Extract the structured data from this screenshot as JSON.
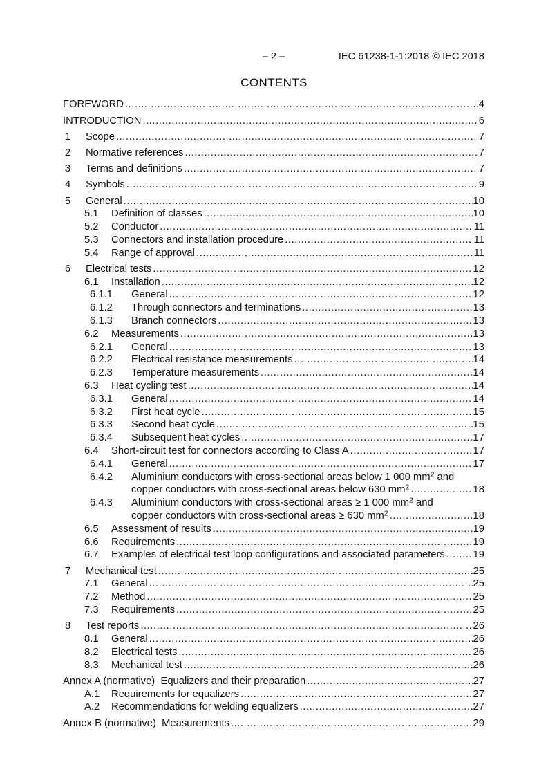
{
  "colors": {
    "background": "#ffffff",
    "text": "#111111"
  },
  "header": {
    "page_marker": "– 2 –",
    "doc_ref": "IEC 61238-1-1:2018 © IEC 2018"
  },
  "title": "CONTENTS",
  "toc": [
    {
      "level": 0,
      "num": "",
      "title": "FOREWORD",
      "page": "4"
    },
    {
      "level": 0,
      "num": "",
      "title": "INTRODUCTION",
      "page": "6"
    },
    {
      "level": 1,
      "num": "1",
      "title": "Scope",
      "page": "7"
    },
    {
      "level": 1,
      "num": "2",
      "title": "Normative references",
      "page": "7"
    },
    {
      "level": 1,
      "num": "3",
      "title": "Terms and definitions",
      "page": "7"
    },
    {
      "level": 1,
      "num": "4",
      "title": "Symbols",
      "page": "9"
    },
    {
      "level": 1,
      "num": "5",
      "title": "General",
      "page": "10"
    },
    {
      "level": 2,
      "num": "5.1",
      "title": "Definition of classes",
      "page": "10"
    },
    {
      "level": 2,
      "num": "5.2",
      "title": "Conductor",
      "page": "11"
    },
    {
      "level": 2,
      "num": "5.3",
      "title": "Connectors and installation procedure",
      "page": "11"
    },
    {
      "level": 2,
      "num": "5.4",
      "title": "Range of approval",
      "page": "11"
    },
    {
      "level": 1,
      "num": "6",
      "title": "Electrical tests",
      "page": "12"
    },
    {
      "level": 2,
      "num": "6.1",
      "title": "Installation",
      "page": "12"
    },
    {
      "level": 3,
      "num": "6.1.1",
      "title": "General",
      "page": "12"
    },
    {
      "level": 3,
      "num": "6.1.2",
      "title": "Through connectors and terminations",
      "page": "13"
    },
    {
      "level": 3,
      "num": "6.1.3",
      "title": "Branch connectors",
      "page": "13"
    },
    {
      "level": 2,
      "num": "6.2",
      "title": "Measurements",
      "page": "13"
    },
    {
      "level": 3,
      "num": "6.2.1",
      "title": "General",
      "page": "13"
    },
    {
      "level": 3,
      "num": "6.2.2",
      "title": "Electrical resistance measurements",
      "page": "14"
    },
    {
      "level": 3,
      "num": "6.2.3",
      "title": "Temperature measurements",
      "page": "14"
    },
    {
      "level": 2,
      "num": "6.3",
      "title": "Heat cycling test",
      "page": "14"
    },
    {
      "level": 3,
      "num": "6.3.1",
      "title": "General",
      "page": "14"
    },
    {
      "level": 3,
      "num": "6.3.2",
      "title": "First heat cycle",
      "page": "15"
    },
    {
      "level": 3,
      "num": "6.3.3",
      "title": "Second heat cycle",
      "page": "15"
    },
    {
      "level": 3,
      "num": "6.3.4",
      "title": "Subsequent heat cycles",
      "page": "17"
    },
    {
      "level": 2,
      "num": "6.4",
      "title": "Short-circuit test for connectors according to Class A",
      "page": "17"
    },
    {
      "level": 3,
      "num": "6.4.1",
      "title": "General",
      "page": "17"
    },
    {
      "level": 3,
      "num": "6.4.2",
      "lines": [
        {
          "segs": [
            {
              "t": "Aluminium conductors with cross-sectional areas below 1 000 mm"
            },
            {
              "sup": "2"
            },
            {
              "t": " and"
            }
          ]
        },
        {
          "segs": [
            {
              "t": "copper conductors with cross-sectional areas below 630 mm"
            },
            {
              "sup": "2"
            }
          ],
          "page": "18"
        }
      ]
    },
    {
      "level": 3,
      "num": "6.4.3",
      "lines": [
        {
          "segs": [
            {
              "t": "Aluminium conductors with cross-sectional areas ≥ 1 000 mm"
            },
            {
              "sup": "2"
            },
            {
              "t": " and"
            }
          ]
        },
        {
          "segs": [
            {
              "t": "copper conductors with cross-sectional areas ≥ 630 mm"
            },
            {
              "sup": "2"
            }
          ],
          "page": "18"
        }
      ]
    },
    {
      "level": 2,
      "num": "6.5",
      "title": "Assessment of results",
      "page": "19"
    },
    {
      "level": 2,
      "num": "6.6",
      "title": "Requirements",
      "page": "19"
    },
    {
      "level": 2,
      "num": "6.7",
      "title": "Examples of electrical test loop configurations and associated parameters",
      "page": "19"
    },
    {
      "level": 1,
      "num": "7",
      "title": "Mechanical test",
      "page": "25"
    },
    {
      "level": 2,
      "num": "7.1",
      "title": "General",
      "page": "25"
    },
    {
      "level": 2,
      "num": "7.2",
      "title": "Method",
      "page": "25"
    },
    {
      "level": 2,
      "num": "7.3",
      "title": "Requirements",
      "page": "25"
    },
    {
      "level": 1,
      "num": "8",
      "title": "Test reports",
      "page": "26"
    },
    {
      "level": 2,
      "num": "8.1",
      "title": "General",
      "page": "26"
    },
    {
      "level": 2,
      "num": "8.2",
      "title": "Electrical tests",
      "page": "26"
    },
    {
      "level": 2,
      "num": "8.3",
      "title": "Mechanical test",
      "page": "26"
    },
    {
      "level": 0,
      "num": "",
      "title": "Annex A (normative)  Equalizers and their preparation",
      "page": "27"
    },
    {
      "level": 2,
      "num": "A.1",
      "title": "Requirements for equalizers",
      "page": "27"
    },
    {
      "level": 2,
      "num": "A.2",
      "title": "Recommendations for welding equalizers",
      "page": "27"
    },
    {
      "level": 0,
      "num": "",
      "title": "Annex B (normative)  Measurements",
      "page": "29"
    }
  ]
}
